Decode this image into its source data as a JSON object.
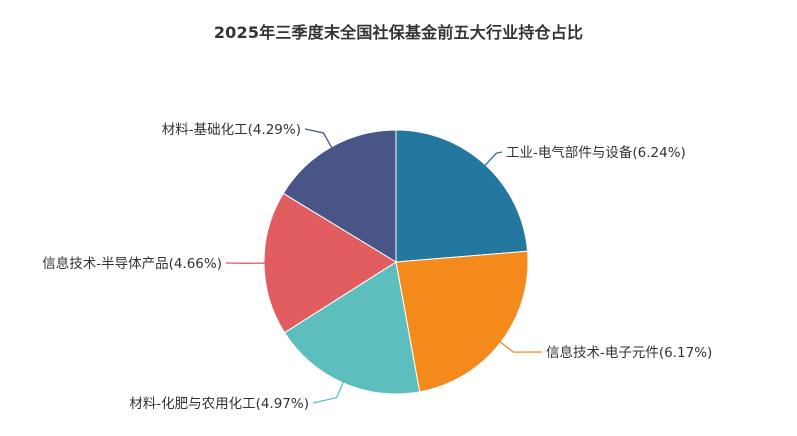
{
  "chart_data": {
    "type": "pie",
    "title": "2025年三季度末全国社保基金前五大行业持仓占比",
    "slices": [
      {
        "label": "工业-电气部件与设备(6.24%)",
        "category": "工业-电气部件与设备",
        "value": 6.24,
        "color": "#24779f"
      },
      {
        "label": "信息技术-电子元件(6.17%)",
        "category": "信息技术-电子元件",
        "value": 6.17,
        "color": "#f4891c"
      },
      {
        "label": "材料-化肥与农用化工(4.97%)",
        "category": "材料-化肥与农用化工",
        "value": 4.97,
        "color": "#5dbfbd"
      },
      {
        "label": "信息技术-半导体产品(4.66%)",
        "category": "信息技术-半导体产品",
        "value": 4.66,
        "color": "#e15d60"
      },
      {
        "label": "材料-基础化工(4.29%)",
        "category": "材料-基础化工",
        "value": 4.29,
        "color": "#4a5587"
      }
    ],
    "start_direction": "top",
    "direction": "clockwise",
    "legend": "none"
  }
}
